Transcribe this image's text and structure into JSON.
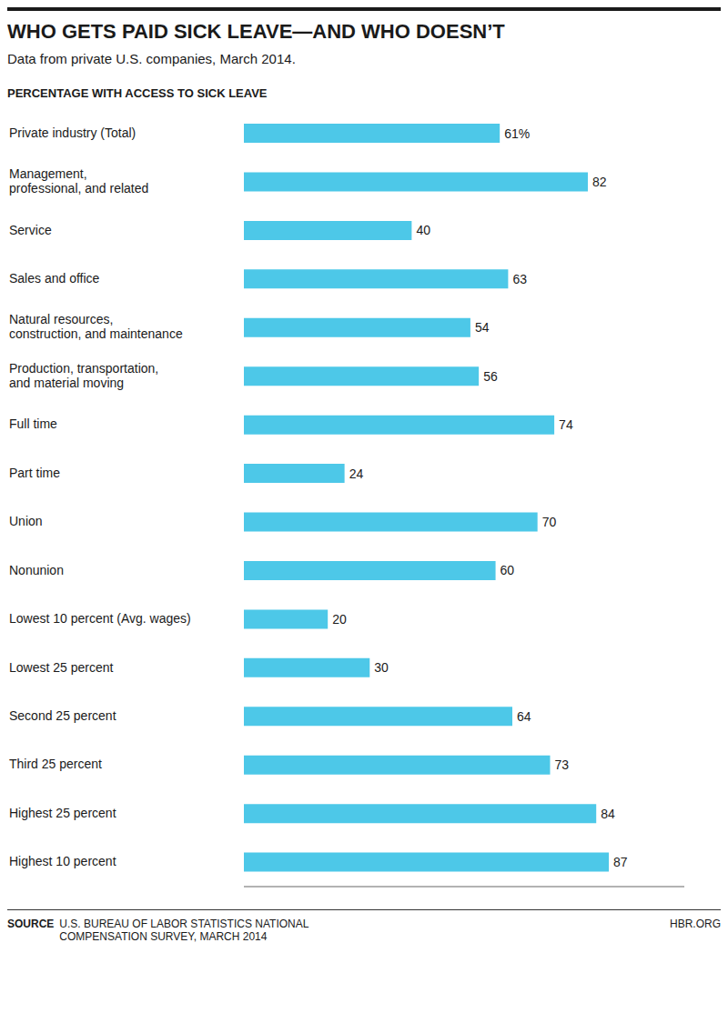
{
  "chart_data": {
    "type": "bar",
    "orientation": "horizontal",
    "title": "WHO GETS PAID SICK LEAVE—AND WHO DOESN’T",
    "subtitle": "Data from private U.S. companies, March 2014.",
    "annotations": [
      "PERCENTAGE WITH ACCESS TO SICK LEAVE",
      "SOURCE",
      "U.S. BUREAU OF LABOR STATISTICS NATIONAL\nCOMPENSATION SURVEY, MARCH 2014",
      "HBR.ORG"
    ],
    "categories": [
      "Private industry (Total)",
      "Management,\nprofessional, and related",
      "Service",
      "Sales and office",
      "Natural resources,\nconstruction, and maintenance",
      "Production, transportation,\nand material moving",
      "Full time",
      "Part time",
      "Union",
      "Nonunion",
      "Lowest 10 percent (Avg. wages)",
      "Lowest 25 percent",
      "Second 25 percent",
      "Third 25 percent",
      "Highest 25 percent",
      "Highest 10 percent"
    ],
    "values": [
      61,
      82,
      40,
      63,
      54,
      56,
      74,
      24,
      70,
      60,
      20,
      30,
      64,
      73,
      84,
      87
    ],
    "value_labels": [
      "61%",
      "82",
      "40",
      "63",
      "54",
      "56",
      "74",
      "24",
      "70",
      "60",
      "20",
      "30",
      "64",
      "73",
      "84",
      "87"
    ],
    "color": "#4DC8E8",
    "xlim": [
      0,
      105
    ],
    "data_labels": true,
    "tick_labels": "y",
    "grid": false
  }
}
